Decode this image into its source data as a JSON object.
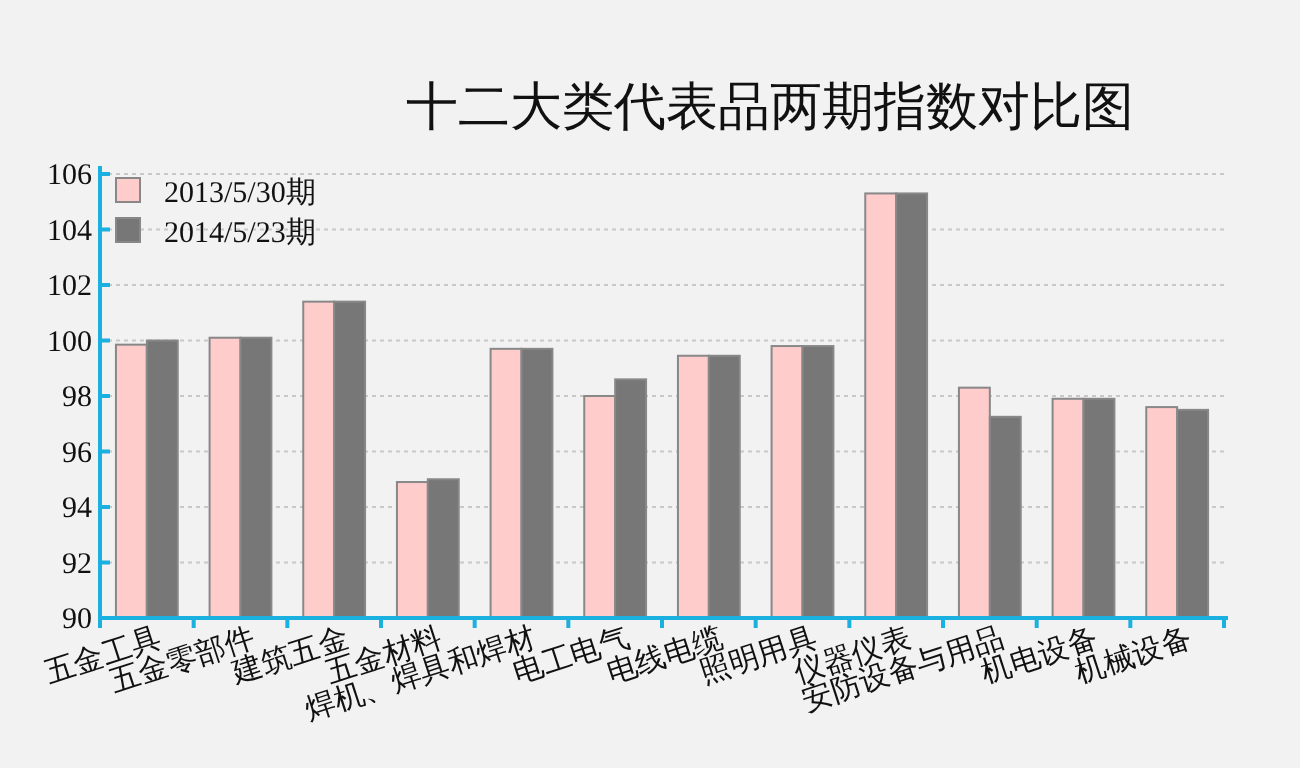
{
  "chart_data": {
    "type": "bar",
    "title": "十二大类代表品两期指数对比图",
    "categories": [
      "五金工具",
      "五金零部件",
      "建筑五金",
      "五金材料",
      "焊机、焊具和焊材",
      "电工电气",
      "电线电缆",
      "照明用具",
      "仪器仪表",
      "安防设备与用品",
      "机电设备",
      "机械设备"
    ],
    "series": [
      {
        "name": "2013/5/30期",
        "color": "#ffcccc",
        "values": [
          99.85,
          100.1,
          101.4,
          94.9,
          99.7,
          98.0,
          99.45,
          99.8,
          105.3,
          98.3,
          97.9,
          97.6
        ]
      },
      {
        "name": "2014/5/23期",
        "color": "#777777",
        "values": [
          100.0,
          100.1,
          101.4,
          95.0,
          99.7,
          98.6,
          99.45,
          99.8,
          105.3,
          97.25,
          97.9,
          97.5
        ]
      }
    ],
    "ylim": [
      90,
      106
    ],
    "yticks": [
      90,
      92,
      94,
      96,
      98,
      100,
      102,
      104,
      106
    ],
    "grid": "y",
    "legend": "top left"
  }
}
